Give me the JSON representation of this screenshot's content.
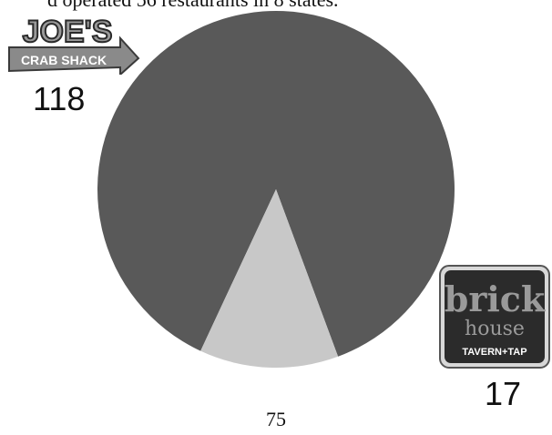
{
  "header_text": "d operated 56 restaurants in 8 states.",
  "page_number": "75",
  "colors": {
    "slice_main": "#595959",
    "slice_small": "#c8c8c8"
  },
  "logos": {
    "joes": {
      "line1": "JOE'S",
      "line2": "CRAB SHACK"
    },
    "brick": {
      "line1": "brick",
      "line2": "house",
      "line3": "TAVERN+TAP"
    }
  },
  "chart_data": {
    "type": "pie",
    "title": "",
    "start_angle_deg": 115,
    "slices": [
      {
        "name": "Joe's Crab Shack",
        "value": 118,
        "label": "118",
        "color": "#595959"
      },
      {
        "name": "Brick House Tavern + Tap",
        "value": 17,
        "label": "17",
        "color": "#c8c8c8"
      }
    ]
  }
}
